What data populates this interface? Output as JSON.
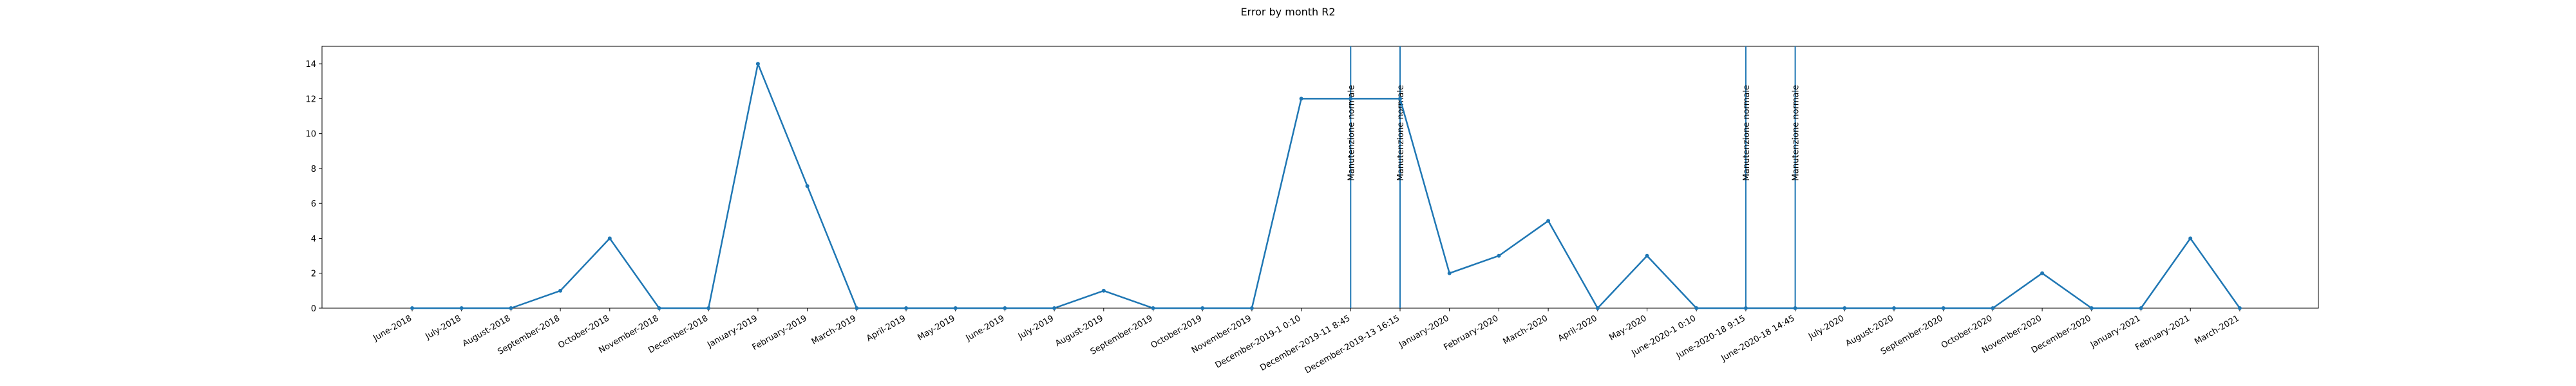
{
  "chart_data": {
    "type": "line",
    "title": "Error by month R2",
    "xlabel": "",
    "ylabel": "",
    "categories": [
      "June-2018",
      "July-2018",
      "August-2018",
      "September-2018",
      "October-2018",
      "November-2018",
      "December-2018",
      "January-2019",
      "February-2019",
      "March-2019",
      "April-2019",
      "May-2019",
      "June-2019",
      "July-2019",
      "August-2019",
      "September-2019",
      "October-2019",
      "November-2019",
      "December-2019-1 0:10",
      "December-2019-11 8:45",
      "December-2019-13 16:15",
      "January-2020",
      "February-2020",
      "March-2020",
      "April-2020",
      "May-2020",
      "June-2020-1 0:10",
      "June-2020-18 9:15",
      "June-2020-18 14:45",
      "July-2020",
      "August-2020",
      "September-2020",
      "October-2020",
      "November-2020",
      "December-2020",
      "January-2021",
      "February-2021",
      "March-2021"
    ],
    "series": [
      {
        "values": [
          0,
          0,
          0,
          1,
          4,
          0,
          0,
          14,
          7,
          0,
          0,
          0,
          0,
          0,
          1,
          0,
          0,
          0,
          12,
          12,
          12,
          2,
          3,
          5,
          0,
          3,
          0,
          0,
          0,
          0,
          0,
          0,
          0,
          2,
          0,
          0,
          4,
          0
        ],
        "color": "#1f77b4"
      }
    ],
    "yticks": [
      0,
      2,
      4,
      6,
      8,
      10,
      12,
      14
    ],
    "ylim": [
      0,
      15
    ],
    "grid": false,
    "vlines": [
      {
        "at": "December-2019-11 8:45",
        "label": "Manutenzione normale"
      },
      {
        "at": "December-2019-13 16:15",
        "label": "Manutenzione normale"
      },
      {
        "at": "June-2020-18 9:15",
        "label": "Manutenzione normale"
      },
      {
        "at": "June-2020-18 14:45",
        "label": "Manutenzione normale"
      }
    ],
    "vline_color": "#1f77b4"
  }
}
